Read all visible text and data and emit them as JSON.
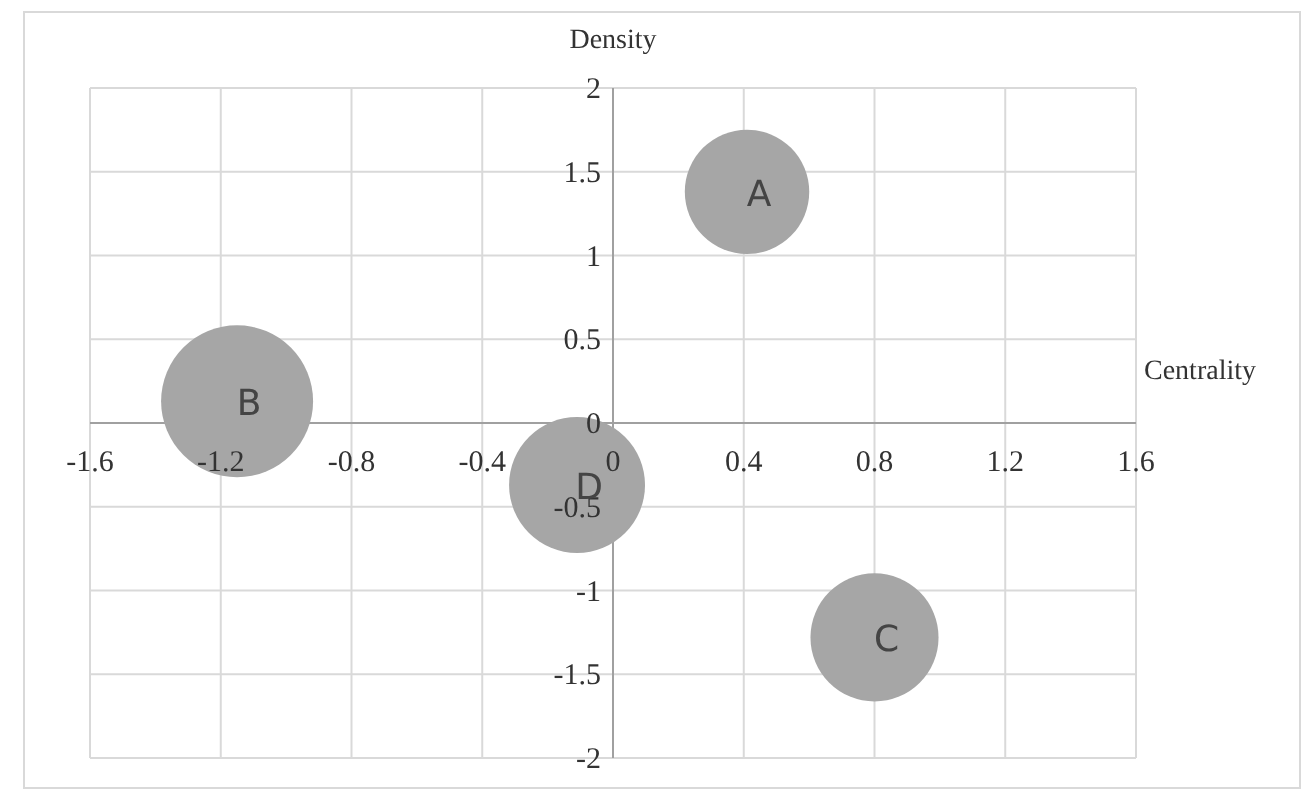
{
  "chart_data": {
    "type": "bubble",
    "xlabel": "Centrality",
    "ylabel": "Density",
    "x": [
      0.41,
      -1.15,
      0.8,
      -0.11
    ],
    "series": [
      {
        "color": "#a6a6a6",
        "values": [
          1.38,
          0.13,
          -1.28,
          -0.37
        ],
        "sizes": [
          0.67,
          1,
          0.71,
          0.8
        ]
      }
    ],
    "annotations": [
      {
        "text": "A",
        "x": 0.41,
        "y": 1.38
      },
      {
        "text": "B",
        "x": -1.15,
        "y": 0.13
      },
      {
        "text": "C",
        "x": 0.8,
        "y": -1.28
      },
      {
        "text": "D",
        "x": -0.11,
        "y": -0.37
      }
    ],
    "xlim": [
      -1.6,
      1.6
    ],
    "ylim": [
      -2,
      2
    ],
    "xticks": [
      -1.6,
      -1.2,
      -0.8,
      -0.4,
      0,
      0.4,
      0.8,
      1.2,
      1.6
    ],
    "yticks": [
      -2,
      -1.5,
      -1,
      -0.5,
      0,
      0.5,
      1,
      1.5,
      2
    ],
    "grid": true
  }
}
